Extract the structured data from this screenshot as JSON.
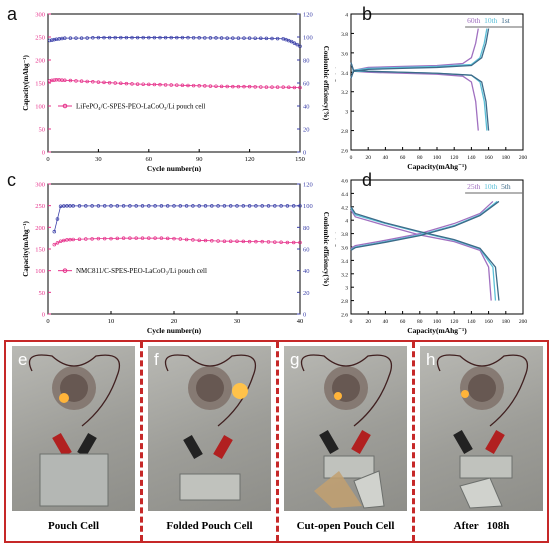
{
  "panels": {
    "a": "a",
    "b": "b",
    "c": "c",
    "d": "d",
    "e": "e",
    "f": "f",
    "g": "g",
    "h": "h"
  },
  "chart_data": [
    {
      "id": "a",
      "type": "scatter",
      "xlabel": "Cycle number(n)",
      "ylabel": "Capacity(mAhg⁻¹)",
      "y2label": "Coulombic efficiency(%)",
      "xlim": [
        0,
        150
      ],
      "ylim": [
        0,
        300
      ],
      "y2lim": [
        0,
        120
      ],
      "xticks": [
        0,
        30,
        60,
        90,
        120,
        150
      ],
      "yticks": [
        0,
        50,
        100,
        150,
        200,
        250,
        300
      ],
      "y2ticks": [
        0,
        20,
        40,
        60,
        80,
        100,
        120
      ],
      "series": [
        {
          "name": "LiFePO₄/C-SPES-PEO-LaCoO₃/Li pouch cell",
          "axis": "left",
          "color": "#e6308a",
          "x": [
            1,
            5,
            10,
            20,
            30,
            40,
            50,
            60,
            70,
            80,
            90,
            100,
            110,
            120,
            130,
            140,
            150
          ],
          "y": [
            155,
            157,
            156,
            154,
            152,
            150,
            148,
            147,
            146,
            145,
            144,
            143,
            142,
            142,
            141,
            141,
            140
          ]
        },
        {
          "name": "Coulombic efficiency",
          "axis": "right",
          "color": "#3a3fa8",
          "x": [
            1,
            5,
            10,
            20,
            30,
            40,
            50,
            60,
            70,
            80,
            90,
            100,
            110,
            120,
            130,
            140,
            145,
            150
          ],
          "y": [
            97,
            98,
            99,
            99,
            99.5,
            99.5,
            99.5,
            99.5,
            99.5,
            99.5,
            99.3,
            99.2,
            99,
            99,
            98.8,
            98.5,
            96,
            92
          ]
        }
      ]
    },
    {
      "id": "b",
      "type": "line",
      "xlabel": "Capacity(mAhg⁻¹)",
      "ylabel": "Voltage(V)",
      "xlim": [
        0,
        200
      ],
      "ylim": [
        2.6,
        4.0
      ],
      "xticks": [
        0,
        20,
        40,
        60,
        80,
        100,
        120,
        140,
        160,
        180,
        200
      ],
      "yticks": [
        2.6,
        2.8,
        3.0,
        3.2,
        3.4,
        3.6,
        3.8,
        4.0
      ],
      "annotations": [
        "60th",
        "10th",
        "1st"
      ],
      "series": [
        {
          "name": "60th",
          "color": "#a070c0",
          "charge": {
            "x": [
              0,
              3,
              20,
              60,
              100,
              130,
              140,
              145,
              148
            ],
            "y": [
              3.34,
              3.42,
              3.45,
              3.46,
              3.47,
              3.49,
              3.55,
              3.7,
              3.85
            ]
          },
          "discharge": {
            "x": [
              0,
              3,
              20,
              60,
              100,
              130,
              140,
              145,
              148
            ],
            "y": [
              3.5,
              3.41,
              3.4,
              3.39,
              3.38,
              3.36,
              3.3,
              3.1,
              2.8
            ]
          }
        },
        {
          "name": "10th",
          "color": "#5cc0d8",
          "charge": {
            "x": [
              0,
              3,
              20,
              60,
              100,
              140,
              150,
              155,
              158
            ],
            "y": [
              3.34,
              3.42,
              3.44,
              3.45,
              3.46,
              3.48,
              3.55,
              3.7,
              3.85
            ]
          },
          "discharge": {
            "x": [
              0,
              3,
              20,
              60,
              100,
              140,
              150,
              155,
              158
            ],
            "y": [
              3.5,
              3.41,
              3.41,
              3.4,
              3.39,
              3.37,
              3.3,
              3.1,
              2.8
            ]
          }
        },
        {
          "name": "1st",
          "color": "#3d6a88",
          "charge": {
            "x": [
              0,
              3,
              20,
              60,
              100,
              140,
              152,
              157,
              160
            ],
            "y": [
              3.34,
              3.41,
              3.43,
              3.44,
              3.45,
              3.47,
              3.55,
              3.7,
              3.85
            ]
          },
          "discharge": {
            "x": [
              0,
              3,
              20,
              60,
              100,
              140,
              152,
              157,
              160
            ],
            "y": [
              3.5,
              3.42,
              3.41,
              3.4,
              3.39,
              3.37,
              3.3,
              3.1,
              2.8
            ]
          }
        }
      ]
    },
    {
      "id": "c",
      "type": "scatter",
      "xlabel": "Cycle number(n)",
      "ylabel": "Capacity(mAhg⁻¹)",
      "y2label": "Coulombic efficiency(%)",
      "xlim": [
        0,
        40
      ],
      "ylim": [
        0,
        300
      ],
      "y2lim": [
        0,
        120
      ],
      "xticks": [
        0,
        10,
        20,
        30,
        40
      ],
      "yticks": [
        0,
        50,
        100,
        150,
        200,
        250,
        300
      ],
      "y2ticks": [
        0,
        20,
        40,
        60,
        80,
        100,
        120
      ],
      "series": [
        {
          "name": "NMC811/C-SPES-PEO-LaCoO₃/Li pouch cell",
          "axis": "left",
          "color": "#e6308a",
          "x": [
            1,
            2,
            3,
            4,
            6,
            8,
            10,
            12,
            14,
            16,
            18,
            20,
            22,
            24,
            26,
            28,
            30,
            32,
            34,
            36,
            38,
            40
          ],
          "y": [
            160,
            168,
            171,
            172,
            173,
            174,
            174,
            175,
            175,
            175,
            175,
            174,
            172,
            170,
            169,
            168,
            168,
            167,
            167,
            166,
            165,
            165
          ]
        },
        {
          "name": "Coulombic efficiency",
          "axis": "right",
          "color": "#3a3fa8",
          "x": [
            1,
            2,
            3,
            4,
            6,
            8,
            10,
            12,
            14,
            16,
            18,
            20,
            22,
            24,
            26,
            28,
            30,
            32,
            34,
            36,
            38,
            40
          ],
          "y": [
            76,
            99.5,
            99.8,
            99.8,
            99.8,
            99.8,
            99.8,
            99.8,
            99.8,
            99.8,
            99.8,
            99.8,
            99.8,
            99.8,
            99.8,
            99.8,
            99.8,
            99.8,
            99.8,
            99.8,
            99.8,
            99.8
          ]
        }
      ]
    },
    {
      "id": "d",
      "type": "line",
      "xlabel": "Capacity(mAhg⁻¹)",
      "ylabel": "Voltage(V)",
      "xlim": [
        0,
        200
      ],
      "ylim": [
        2.6,
        4.6
      ],
      "xticks": [
        0,
        20,
        40,
        60,
        80,
        100,
        120,
        140,
        160,
        180,
        200
      ],
      "yticks": [
        2.6,
        2.8,
        3.0,
        3.2,
        3.4,
        3.6,
        3.8,
        4.0,
        4.2,
        4.4,
        4.6
      ],
      "annotations": [
        "25th",
        "10th",
        "5th"
      ],
      "series": [
        {
          "name": "25th",
          "color": "#a070c0",
          "charge": {
            "x": [
              0,
              5,
              40,
              80,
              120,
              150,
              165
            ],
            "y": [
              3.58,
              3.62,
              3.7,
              3.8,
              3.95,
              4.1,
              4.28
            ]
          },
          "discharge": {
            "x": [
              0,
              5,
              40,
              80,
              120,
              150,
              160,
              163
            ],
            "y": [
              4.15,
              4.05,
              3.92,
              3.78,
              3.68,
              3.55,
              3.3,
              2.8
            ]
          }
        },
        {
          "name": "10th",
          "color": "#5cc0d8",
          "charge": {
            "x": [
              0,
              5,
              40,
              80,
              120,
              150,
              170
            ],
            "y": [
              3.56,
              3.6,
              3.68,
              3.78,
              3.92,
              4.08,
              4.28
            ]
          },
          "discharge": {
            "x": [
              0,
              5,
              40,
              80,
              120,
              150,
              165,
              168
            ],
            "y": [
              4.18,
              4.08,
              3.95,
              3.82,
              3.7,
              3.57,
              3.3,
              2.8
            ]
          }
        },
        {
          "name": "5th",
          "color": "#3d6a88",
          "charge": {
            "x": [
              0,
              5,
              40,
              80,
              120,
              150,
              172
            ],
            "y": [
              3.55,
              3.59,
              3.67,
              3.77,
              3.91,
              4.07,
              4.28
            ]
          },
          "discharge": {
            "x": [
              0,
              5,
              40,
              80,
              120,
              150,
              168,
              172
            ],
            "y": [
              4.2,
              4.1,
              3.96,
              3.83,
              3.71,
              3.58,
              3.3,
              2.8
            ]
          }
        }
      ]
    }
  ],
  "photos": {
    "captions": [
      "Pouch Cell",
      "Folded Pouch Cell",
      "Cut-open Pouch Cell",
      "After   108h"
    ]
  },
  "colors": {
    "frame": "#c62828",
    "capacity": "#e6308a",
    "efficiency": "#3a3fa8"
  }
}
